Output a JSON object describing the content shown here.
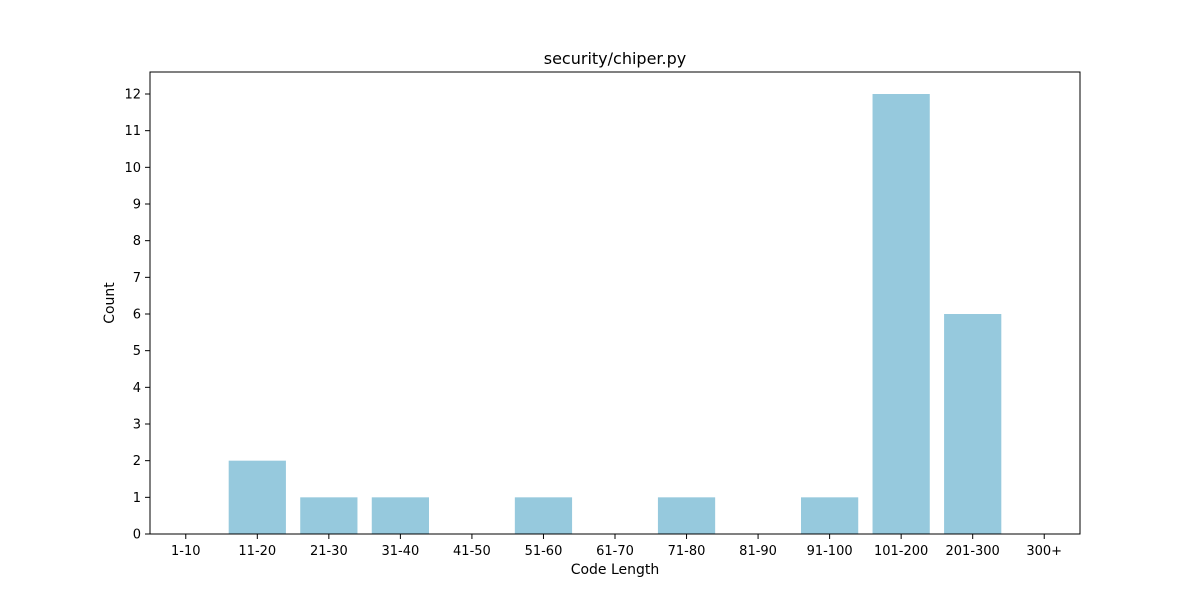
{
  "chart_data": {
    "type": "bar",
    "title": "security/chiper.py",
    "xlabel": "Code Length",
    "ylabel": "Count",
    "categories": [
      "1-10",
      "11-20",
      "21-30",
      "31-40",
      "41-50",
      "51-60",
      "61-70",
      "71-80",
      "81-90",
      "91-100",
      "101-200",
      "201-300",
      "300+"
    ],
    "values": [
      0,
      2,
      1,
      1,
      0,
      1,
      0,
      1,
      0,
      1,
      12,
      6,
      0
    ],
    "yticks": [
      0,
      1,
      2,
      3,
      4,
      5,
      6,
      7,
      8,
      9,
      10,
      11,
      12
    ],
    "ylim": [
      0,
      12.6
    ],
    "bar_color": "#96c9dd",
    "grid": false,
    "legend": "none"
  }
}
